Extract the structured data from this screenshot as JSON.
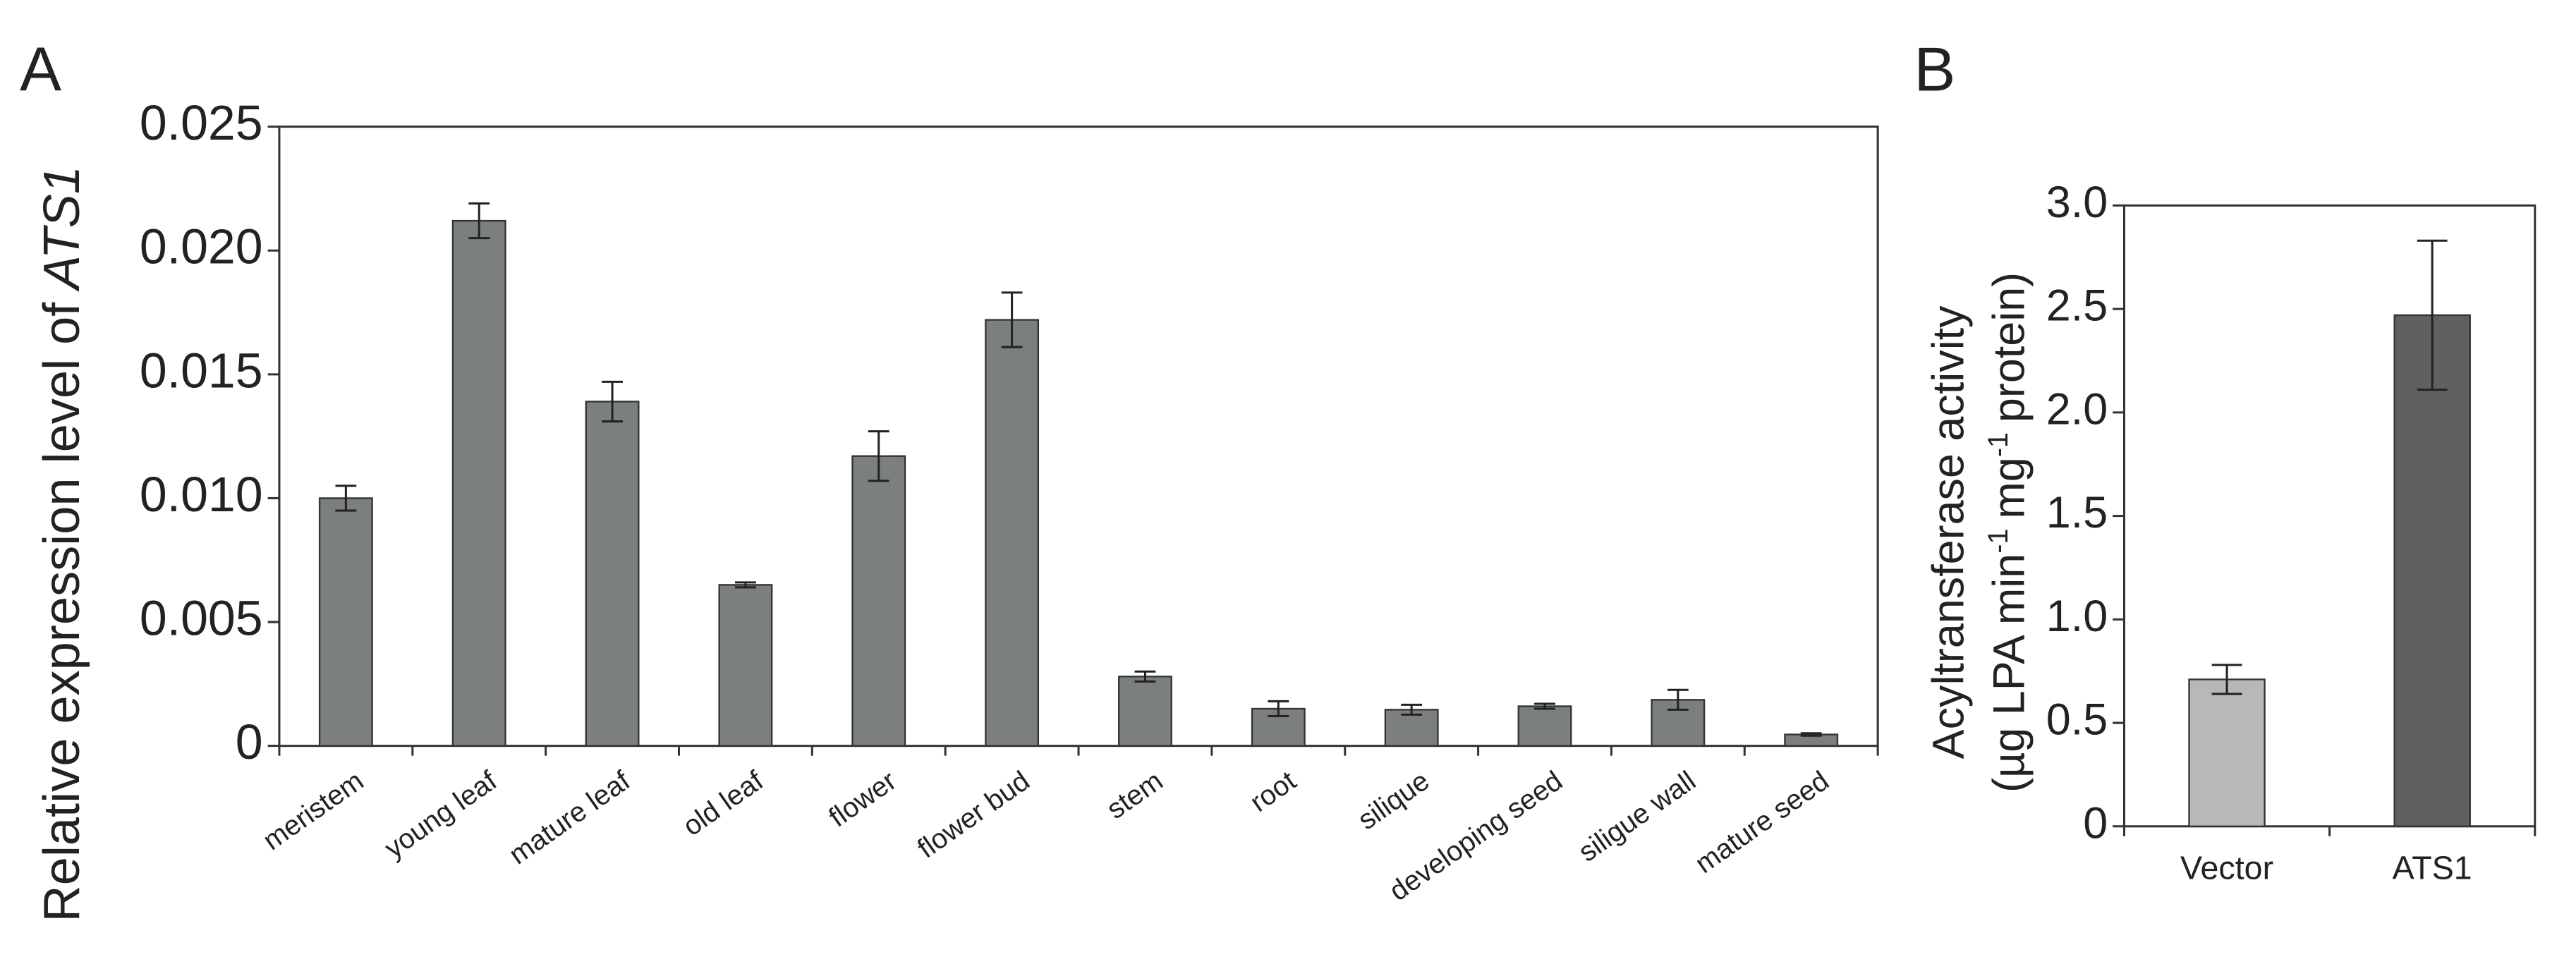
{
  "chart_data": [
    {
      "type": "bar",
      "panel": "A",
      "ylabel": [
        "Relative expression level of",
        "ATS1"
      ],
      "categories": [
        "meristem",
        "young leaf",
        "mature leaf",
        "old leaf",
        "flower",
        "flower bud",
        "stem",
        "root",
        "silique",
        "developing seed",
        "siligue wall",
        "mature seed"
      ],
      "values": [
        0.01,
        0.0212,
        0.0139,
        0.0065,
        0.0117,
        0.0172,
        0.0028,
        0.0015,
        0.00146,
        0.0016,
        0.00186,
        0.00046
      ],
      "errors": [
        0.0005,
        0.0007,
        0.0008,
        0.0001,
        0.001,
        0.0011,
        0.0002,
        0.0003,
        0.0002,
        0.0001,
        0.0004,
        5e-05
      ],
      "color": "#7b7f7e",
      "ylim": [
        0,
        0.025
      ],
      "yticks": [
        0,
        0.005,
        {
          "value": 0.01,
          "label": "0.010"
        },
        0.015,
        {
          "value": 0.02,
          "label": "0.020"
        },
        0.025
      ]
    },
    {
      "type": "bar",
      "panel": "B",
      "ylabel": [
        "Acyltransferase activity"
      ],
      "ylabel_units": [
        "(µg LPA min",
        "-1",
        "mg",
        "-1",
        "protein)"
      ],
      "categories": [
        "Vector",
        "ATS1"
      ],
      "values": [
        0.71,
        2.47
      ],
      "errors": [
        0.07,
        0.36
      ],
      "colors": [
        "#b8b8b8",
        "#5f6060"
      ],
      "ylim": [
        0,
        3
      ],
      "yticks": [
        0,
        0.5,
        {
          "value": 1,
          "label": "1.0"
        },
        1.5,
        {
          "value": 2,
          "label": "2.0"
        },
        2.5,
        {
          "value": 3,
          "label": "3.0"
        }
      ]
    }
  ]
}
